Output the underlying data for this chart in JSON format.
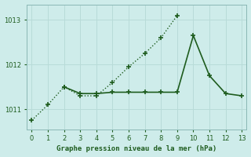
{
  "title": "Graphe pression niveau de la mer (hPa)",
  "background_color": "#ceecea",
  "grid_color": "#b8dbd8",
  "line_color": "#1e5c1e",
  "xlim": [
    -0.3,
    13.3
  ],
  "ylim": [
    1010.55,
    1013.35
  ],
  "xticks": [
    0,
    1,
    2,
    3,
    4,
    5,
    6,
    7,
    8,
    9,
    10,
    11,
    12,
    13
  ],
  "yticks": [
    1011,
    1012
  ],
  "series1_x": [
    0,
    1,
    2,
    3,
    4,
    5,
    6,
    7,
    8,
    9
  ],
  "series1_y": [
    1010.75,
    1011.1,
    1011.5,
    1011.3,
    1011.3,
    1011.6,
    1011.95,
    1012.25,
    1012.6,
    1013.1
  ],
  "series2_x": [
    2,
    3,
    4,
    5,
    6,
    7,
    8,
    9,
    10,
    11,
    12,
    13
  ],
  "series2_y": [
    1011.5,
    1011.35,
    1011.35,
    1011.38,
    1011.38,
    1011.38,
    1011.38,
    1011.38,
    1012.65,
    1011.75,
    1011.35,
    1011.3
  ]
}
